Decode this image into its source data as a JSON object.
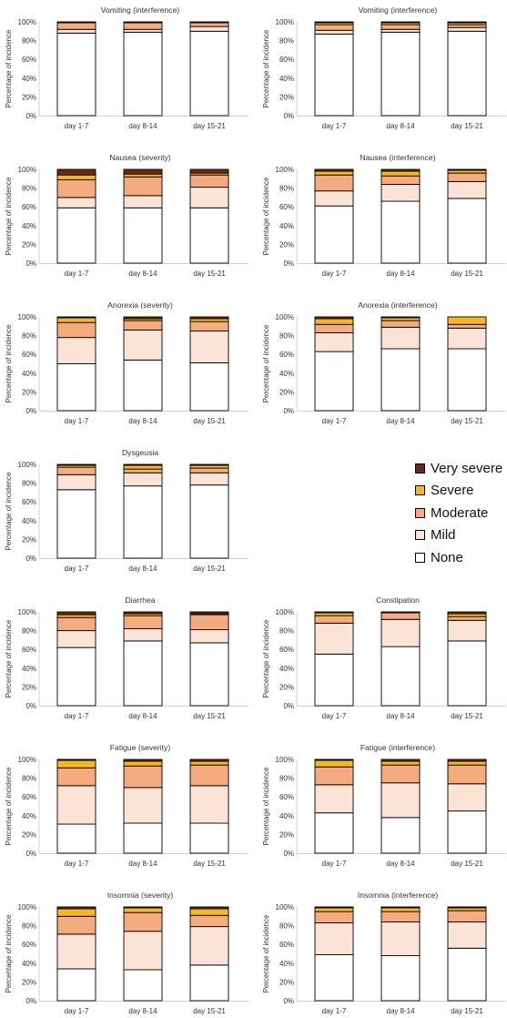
{
  "legend": [
    {
      "name": "Very severe",
      "color": "#6b2a11"
    },
    {
      "name": "Severe",
      "color": "#f7b81c"
    },
    {
      "name": "Moderate",
      "color": "#f4ab7e"
    },
    {
      "name": "Mild",
      "color": "#fbe3d5"
    },
    {
      "name": "None",
      "color": "#ffffff"
    }
  ],
  "chart_data": [
    {
      "type": "bar",
      "stacked": true,
      "title": "Vomiting (interference)",
      "ylabel": "Percentage of incidence",
      "categories": [
        "day 1-7",
        "day 8-14",
        "day 15-21"
      ],
      "yticks": [
        "0%",
        "20%",
        "40%",
        "60%",
        "80%",
        "100%"
      ],
      "ylim": [
        0,
        100
      ],
      "series": [
        {
          "name": "None",
          "values": [
            88,
            89,
            90
          ]
        },
        {
          "name": "Mild",
          "values": [
            4,
            3,
            5
          ]
        },
        {
          "name": "Moderate",
          "values": [
            7,
            7,
            4
          ]
        },
        {
          "name": "Severe",
          "values": [
            0,
            0,
            0
          ]
        },
        {
          "name": "Very severe",
          "values": [
            1,
            1,
            1
          ]
        }
      ]
    },
    {
      "type": "bar",
      "stacked": true,
      "title": "Vomiting (interference)",
      "ylabel": "Percentage of incidence",
      "categories": [
        "day 1-7",
        "day 8-14",
        "day 15-21"
      ],
      "yticks": [
        "0%",
        "20%",
        "40%",
        "60%",
        "80%",
        "100%"
      ],
      "ylim": [
        0,
        100
      ],
      "series": [
        {
          "name": "None",
          "values": [
            87,
            89,
            90
          ]
        },
        {
          "name": "Mild",
          "values": [
            4,
            3,
            4
          ]
        },
        {
          "name": "Moderate",
          "values": [
            6,
            5,
            3
          ]
        },
        {
          "name": "Severe",
          "values": [
            2,
            2,
            2
          ]
        },
        {
          "name": "Very severe",
          "values": [
            1,
            1,
            1
          ]
        }
      ]
    },
    {
      "type": "bar",
      "stacked": true,
      "title": "Nausea (severity)",
      "ylabel": "Percentage of incidence",
      "categories": [
        "day 1-7",
        "day 8-14",
        "day 15-21"
      ],
      "yticks": [
        "0%",
        "20%",
        "40%",
        "60%",
        "80%",
        "100%"
      ],
      "ylim": [
        0,
        100
      ],
      "series": [
        {
          "name": "None",
          "values": [
            59,
            59,
            59
          ]
        },
        {
          "name": "Mild",
          "values": [
            11,
            13,
            22
          ]
        },
        {
          "name": "Moderate",
          "values": [
            19,
            20,
            13
          ]
        },
        {
          "name": "Severe",
          "values": [
            5,
            3,
            2
          ]
        },
        {
          "name": "Very severe",
          "values": [
            6,
            5,
            4
          ]
        }
      ]
    },
    {
      "type": "bar",
      "stacked": true,
      "title": "Nausea (interference)",
      "ylabel": "Percentage of incidence",
      "categories": [
        "day 1-7",
        "day 8-14",
        "day 15-21"
      ],
      "yticks": [
        "0%",
        "20%",
        "40%",
        "60%",
        "80%",
        "100%"
      ],
      "ylim": [
        0,
        100
      ],
      "series": [
        {
          "name": "None",
          "values": [
            61,
            66,
            69
          ]
        },
        {
          "name": "Mild",
          "values": [
            16,
            18,
            18
          ]
        },
        {
          "name": "Moderate",
          "values": [
            17,
            9,
            9
          ]
        },
        {
          "name": "Severe",
          "values": [
            4,
            5,
            3
          ]
        },
        {
          "name": "Very severe",
          "values": [
            2,
            2,
            1
          ]
        }
      ]
    },
    {
      "type": "bar",
      "stacked": true,
      "title": "Anorexia (severity)",
      "ylabel": "Percentage of incidence",
      "categories": [
        "day 1-7",
        "day 8-14",
        "day 15-21"
      ],
      "yticks": [
        "0%",
        "20%",
        "40%",
        "60%",
        "80%",
        "100%"
      ],
      "ylim": [
        0,
        100
      ],
      "series": [
        {
          "name": "None",
          "values": [
            50,
            54,
            51
          ]
        },
        {
          "name": "Mild",
          "values": [
            28,
            32,
            34
          ]
        },
        {
          "name": "Moderate",
          "values": [
            16,
            10,
            10
          ]
        },
        {
          "name": "Severe",
          "values": [
            5,
            2,
            3
          ]
        },
        {
          "name": "Very severe",
          "values": [
            1,
            2,
            2
          ]
        }
      ]
    },
    {
      "type": "bar",
      "stacked": true,
      "title": "Anorexia (interference)",
      "ylabel": "Percentage of incidence",
      "categories": [
        "day 1-7",
        "day 8-14",
        "day 15-21"
      ],
      "yticks": [
        "0%",
        "20%",
        "40%",
        "60%",
        "80%",
        "100%"
      ],
      "ylim": [
        0,
        100
      ],
      "series": [
        {
          "name": "None",
          "values": [
            63,
            66,
            66
          ]
        },
        {
          "name": "Mild",
          "values": [
            20,
            23,
            22
          ]
        },
        {
          "name": "Moderate",
          "values": [
            9,
            7,
            4
          ]
        },
        {
          "name": "Severe",
          "values": [
            6,
            3,
            8
          ]
        },
        {
          "name": "Very severe",
          "values": [
            2,
            1,
            0
          ]
        }
      ]
    },
    {
      "type": "bar",
      "stacked": true,
      "title": "Dysgeusia",
      "ylabel": "Percentage of incidence",
      "categories": [
        "day 1-7",
        "day 8-14",
        "day 15-21"
      ],
      "yticks": [
        "0%",
        "20%",
        "40%",
        "60%",
        "80%",
        "100%"
      ],
      "ylim": [
        0,
        100
      ],
      "series": [
        {
          "name": "None",
          "values": [
            73,
            77,
            78
          ]
        },
        {
          "name": "Mild",
          "values": [
            16,
            14,
            13
          ]
        },
        {
          "name": "Moderate",
          "values": [
            8,
            4,
            5
          ]
        },
        {
          "name": "Severe",
          "values": [
            2,
            4,
            3
          ]
        },
        {
          "name": "Very severe",
          "values": [
            1,
            1,
            1
          ]
        }
      ]
    },
    {
      "type": "bar",
      "stacked": true,
      "title": "Diarrhea",
      "ylabel": "Percentage of incidence",
      "categories": [
        "day 1-7",
        "day 8-14",
        "day 15-21"
      ],
      "yticks": [
        "0%",
        "20%",
        "40%",
        "60%",
        "80%",
        "100%"
      ],
      "ylim": [
        0,
        100
      ],
      "series": [
        {
          "name": "None",
          "values": [
            62,
            69,
            67
          ]
        },
        {
          "name": "Mild",
          "values": [
            18,
            13,
            14
          ]
        },
        {
          "name": "Moderate",
          "values": [
            14,
            14,
            16
          ]
        },
        {
          "name": "Severe",
          "values": [
            3,
            2,
            1
          ]
        },
        {
          "name": "Very severe",
          "values": [
            3,
            2,
            2
          ]
        }
      ]
    },
    {
      "type": "bar",
      "stacked": true,
      "title": "Constipation",
      "ylabel": "Percentage of incidence",
      "categories": [
        "day 1-7",
        "day 8-14",
        "day 15-21"
      ],
      "yticks": [
        "0%",
        "20%",
        "40%",
        "60%",
        "80%",
        "100%"
      ],
      "ylim": [
        0,
        100
      ],
      "series": [
        {
          "name": "None",
          "values": [
            55,
            63,
            69
          ]
        },
        {
          "name": "Mild",
          "values": [
            33,
            29,
            22
          ]
        },
        {
          "name": "Moderate",
          "values": [
            8,
            7,
            4
          ]
        },
        {
          "name": "Severe",
          "values": [
            3,
            0,
            3
          ]
        },
        {
          "name": "Very severe",
          "values": [
            1,
            1,
            2
          ]
        }
      ]
    },
    {
      "type": "bar",
      "stacked": true,
      "title": "Fatigue (severity)",
      "ylabel": "Percentage of incidence",
      "categories": [
        "day 1-7",
        "day 8-14",
        "day 15-21"
      ],
      "yticks": [
        "0%",
        "20%",
        "40%",
        "60%",
        "80%",
        "100%"
      ],
      "ylim": [
        0,
        100
      ],
      "series": [
        {
          "name": "None",
          "values": [
            31,
            32,
            32
          ]
        },
        {
          "name": "Mild",
          "values": [
            41,
            38,
            40
          ]
        },
        {
          "name": "Moderate",
          "values": [
            19,
            23,
            22
          ]
        },
        {
          "name": "Severe",
          "values": [
            8,
            5,
            4
          ]
        },
        {
          "name": "Very severe",
          "values": [
            1,
            2,
            2
          ]
        }
      ]
    },
    {
      "type": "bar",
      "stacked": true,
      "title": "Fatigue (interference)",
      "ylabel": "Percentage of incidence",
      "categories": [
        "day 1-7",
        "day 8-14",
        "day 15-21"
      ],
      "yticks": [
        "0%",
        "20%",
        "40%",
        "60%",
        "80%",
        "100%"
      ],
      "ylim": [
        0,
        100
      ],
      "series": [
        {
          "name": "None",
          "values": [
            43,
            38,
            45
          ]
        },
        {
          "name": "Mild",
          "values": [
            30,
            37,
            29
          ]
        },
        {
          "name": "Moderate",
          "values": [
            19,
            19,
            20
          ]
        },
        {
          "name": "Severe",
          "values": [
            7,
            4,
            4
          ]
        },
        {
          "name": "Very severe",
          "values": [
            1,
            2,
            2
          ]
        }
      ]
    },
    {
      "type": "bar",
      "stacked": true,
      "title": "Insomnia (severity)",
      "ylabel": "Percentage of incidence",
      "categories": [
        "day 1-7",
        "day 8-14",
        "day 15-21"
      ],
      "yticks": [
        "0%",
        "20%",
        "40%",
        "60%",
        "80%",
        "100%"
      ],
      "ylim": [
        0,
        100
      ],
      "series": [
        {
          "name": "None",
          "values": [
            34,
            33,
            38
          ]
        },
        {
          "name": "Mild",
          "values": [
            37,
            41,
            41
          ]
        },
        {
          "name": "Moderate",
          "values": [
            19,
            20,
            12
          ]
        },
        {
          "name": "Severe",
          "values": [
            8,
            5,
            7
          ]
        },
        {
          "name": "Very severe",
          "values": [
            2,
            1,
            2
          ]
        }
      ]
    },
    {
      "type": "bar",
      "stacked": true,
      "title": "Insomnia (interference)",
      "ylabel": "Percentage of incidence",
      "categories": [
        "day 1-7",
        "day 8-14",
        "day 15-21"
      ],
      "yticks": [
        "0%",
        "20%",
        "40%",
        "60%",
        "80%",
        "100%"
      ],
      "ylim": [
        0,
        100
      ],
      "series": [
        {
          "name": "None",
          "values": [
            49,
            48,
            56
          ]
        },
        {
          "name": "Mild",
          "values": [
            34,
            36,
            28
          ]
        },
        {
          "name": "Moderate",
          "values": [
            12,
            11,
            12
          ]
        },
        {
          "name": "Severe",
          "values": [
            4,
            4,
            3
          ]
        },
        {
          "name": "Very severe",
          "values": [
            1,
            1,
            1
          ]
        }
      ]
    }
  ]
}
